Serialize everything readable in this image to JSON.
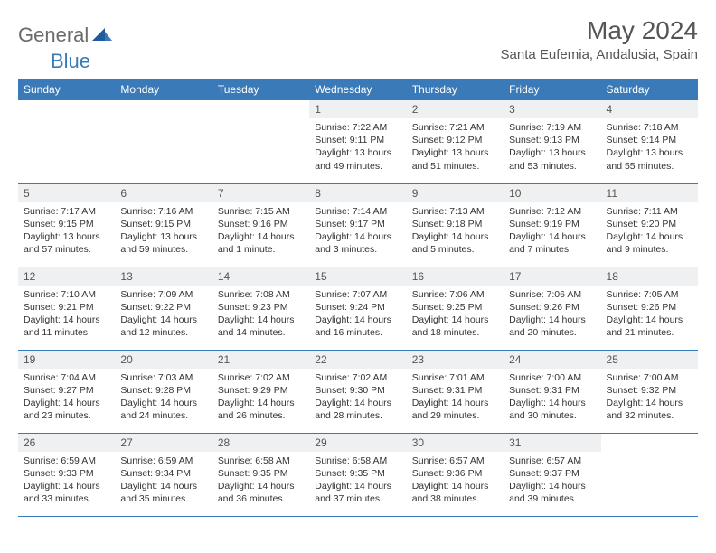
{
  "brand": {
    "part1": "General",
    "part2": "Blue"
  },
  "title": "May 2024",
  "location": "Santa Eufemia, Andalusia, Spain",
  "colors": {
    "accent": "#3a7ab8",
    "headerText": "#ffffff",
    "grayBg": "#eef0f1"
  },
  "weekdays": [
    "Sunday",
    "Monday",
    "Tuesday",
    "Wednesday",
    "Thursday",
    "Friday",
    "Saturday"
  ],
  "weeks": [
    [
      null,
      null,
      null,
      {
        "n": "1",
        "sr": "Sunrise: 7:22 AM",
        "ss": "Sunset: 9:11 PM",
        "dl": "Daylight: 13 hours and 49 minutes."
      },
      {
        "n": "2",
        "sr": "Sunrise: 7:21 AM",
        "ss": "Sunset: 9:12 PM",
        "dl": "Daylight: 13 hours and 51 minutes."
      },
      {
        "n": "3",
        "sr": "Sunrise: 7:19 AM",
        "ss": "Sunset: 9:13 PM",
        "dl": "Daylight: 13 hours and 53 minutes."
      },
      {
        "n": "4",
        "sr": "Sunrise: 7:18 AM",
        "ss": "Sunset: 9:14 PM",
        "dl": "Daylight: 13 hours and 55 minutes."
      }
    ],
    [
      {
        "n": "5",
        "sr": "Sunrise: 7:17 AM",
        "ss": "Sunset: 9:15 PM",
        "dl": "Daylight: 13 hours and 57 minutes."
      },
      {
        "n": "6",
        "sr": "Sunrise: 7:16 AM",
        "ss": "Sunset: 9:15 PM",
        "dl": "Daylight: 13 hours and 59 minutes."
      },
      {
        "n": "7",
        "sr": "Sunrise: 7:15 AM",
        "ss": "Sunset: 9:16 PM",
        "dl": "Daylight: 14 hours and 1 minute."
      },
      {
        "n": "8",
        "sr": "Sunrise: 7:14 AM",
        "ss": "Sunset: 9:17 PM",
        "dl": "Daylight: 14 hours and 3 minutes."
      },
      {
        "n": "9",
        "sr": "Sunrise: 7:13 AM",
        "ss": "Sunset: 9:18 PM",
        "dl": "Daylight: 14 hours and 5 minutes."
      },
      {
        "n": "10",
        "sr": "Sunrise: 7:12 AM",
        "ss": "Sunset: 9:19 PM",
        "dl": "Daylight: 14 hours and 7 minutes."
      },
      {
        "n": "11",
        "sr": "Sunrise: 7:11 AM",
        "ss": "Sunset: 9:20 PM",
        "dl": "Daylight: 14 hours and 9 minutes."
      }
    ],
    [
      {
        "n": "12",
        "sr": "Sunrise: 7:10 AM",
        "ss": "Sunset: 9:21 PM",
        "dl": "Daylight: 14 hours and 11 minutes."
      },
      {
        "n": "13",
        "sr": "Sunrise: 7:09 AM",
        "ss": "Sunset: 9:22 PM",
        "dl": "Daylight: 14 hours and 12 minutes."
      },
      {
        "n": "14",
        "sr": "Sunrise: 7:08 AM",
        "ss": "Sunset: 9:23 PM",
        "dl": "Daylight: 14 hours and 14 minutes."
      },
      {
        "n": "15",
        "sr": "Sunrise: 7:07 AM",
        "ss": "Sunset: 9:24 PM",
        "dl": "Daylight: 14 hours and 16 minutes."
      },
      {
        "n": "16",
        "sr": "Sunrise: 7:06 AM",
        "ss": "Sunset: 9:25 PM",
        "dl": "Daylight: 14 hours and 18 minutes."
      },
      {
        "n": "17",
        "sr": "Sunrise: 7:06 AM",
        "ss": "Sunset: 9:26 PM",
        "dl": "Daylight: 14 hours and 20 minutes."
      },
      {
        "n": "18",
        "sr": "Sunrise: 7:05 AM",
        "ss": "Sunset: 9:26 PM",
        "dl": "Daylight: 14 hours and 21 minutes."
      }
    ],
    [
      {
        "n": "19",
        "sr": "Sunrise: 7:04 AM",
        "ss": "Sunset: 9:27 PM",
        "dl": "Daylight: 14 hours and 23 minutes."
      },
      {
        "n": "20",
        "sr": "Sunrise: 7:03 AM",
        "ss": "Sunset: 9:28 PM",
        "dl": "Daylight: 14 hours and 24 minutes."
      },
      {
        "n": "21",
        "sr": "Sunrise: 7:02 AM",
        "ss": "Sunset: 9:29 PM",
        "dl": "Daylight: 14 hours and 26 minutes."
      },
      {
        "n": "22",
        "sr": "Sunrise: 7:02 AM",
        "ss": "Sunset: 9:30 PM",
        "dl": "Daylight: 14 hours and 28 minutes."
      },
      {
        "n": "23",
        "sr": "Sunrise: 7:01 AM",
        "ss": "Sunset: 9:31 PM",
        "dl": "Daylight: 14 hours and 29 minutes."
      },
      {
        "n": "24",
        "sr": "Sunrise: 7:00 AM",
        "ss": "Sunset: 9:31 PM",
        "dl": "Daylight: 14 hours and 30 minutes."
      },
      {
        "n": "25",
        "sr": "Sunrise: 7:00 AM",
        "ss": "Sunset: 9:32 PM",
        "dl": "Daylight: 14 hours and 32 minutes."
      }
    ],
    [
      {
        "n": "26",
        "sr": "Sunrise: 6:59 AM",
        "ss": "Sunset: 9:33 PM",
        "dl": "Daylight: 14 hours and 33 minutes."
      },
      {
        "n": "27",
        "sr": "Sunrise: 6:59 AM",
        "ss": "Sunset: 9:34 PM",
        "dl": "Daylight: 14 hours and 35 minutes."
      },
      {
        "n": "28",
        "sr": "Sunrise: 6:58 AM",
        "ss": "Sunset: 9:35 PM",
        "dl": "Daylight: 14 hours and 36 minutes."
      },
      {
        "n": "29",
        "sr": "Sunrise: 6:58 AM",
        "ss": "Sunset: 9:35 PM",
        "dl": "Daylight: 14 hours and 37 minutes."
      },
      {
        "n": "30",
        "sr": "Sunrise: 6:57 AM",
        "ss": "Sunset: 9:36 PM",
        "dl": "Daylight: 14 hours and 38 minutes."
      },
      {
        "n": "31",
        "sr": "Sunrise: 6:57 AM",
        "ss": "Sunset: 9:37 PM",
        "dl": "Daylight: 14 hours and 39 minutes."
      },
      null
    ]
  ]
}
